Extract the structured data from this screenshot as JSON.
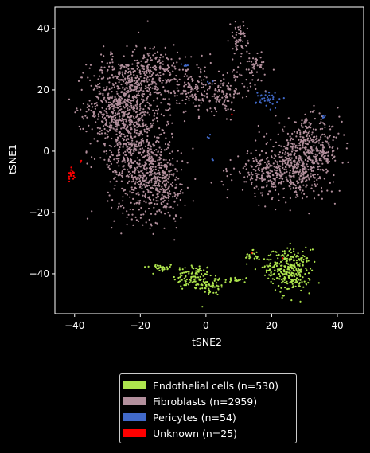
{
  "chart_data": {
    "type": "scatter",
    "title": "",
    "xlabel": "tSNE2",
    "ylabel": "tSNE1",
    "xlim": [
      -46,
      48
    ],
    "ylim": [
      -53,
      47
    ],
    "xticks": [
      -40,
      -20,
      0,
      20,
      40
    ],
    "yticks": [
      -40,
      -20,
      0,
      20,
      40
    ],
    "xtick_labels": [
      "−40",
      "−20",
      "0",
      "20",
      "40"
    ],
    "ytick_labels": [
      "−40",
      "−20",
      "0",
      "20",
      "40"
    ],
    "grid": false,
    "legend_position": "below",
    "series": [
      {
        "name": "Endothelial cells (n=530)",
        "color": "#aee54d",
        "n": 530,
        "clusters": [
          {
            "cx": -14,
            "cy": -38,
            "sx": 2.5,
            "sy": 0.7,
            "n": 30
          },
          {
            "cx": -4,
            "cy": -41,
            "sx": 3.0,
            "sy": 2.2,
            "n": 100
          },
          {
            "cx": 2,
            "cy": -44,
            "sx": 2.0,
            "sy": 1.6,
            "n": 50
          },
          {
            "cx": 9,
            "cy": -42,
            "sx": 2.0,
            "sy": 0.5,
            "n": 20
          },
          {
            "cx": 14,
            "cy": -34,
            "sx": 1.0,
            "sy": 1.2,
            "n": 20
          },
          {
            "cx": 19,
            "cy": -37,
            "sx": 1.6,
            "sy": 1.8,
            "n": 40
          },
          {
            "cx": 26,
            "cy": -39,
            "sx": 3.0,
            "sy": 3.5,
            "n": 270
          }
        ]
      },
      {
        "name": "Fibroblasts (n=2959)",
        "color": "#b28f9c",
        "n": 2959,
        "clusters": [
          {
            "cx": -26,
            "cy": 15,
            "sx": 5.0,
            "sy": 8.0,
            "n": 700
          },
          {
            "cx": -20,
            "cy": -3,
            "sx": 5.0,
            "sy": 9.0,
            "n": 600
          },
          {
            "cx": -16,
            "cy": 25,
            "sx": 4.0,
            "sy": 5.0,
            "n": 250
          },
          {
            "cx": -13,
            "cy": -12,
            "sx": 3.5,
            "sy": 5.0,
            "n": 200
          },
          {
            "cx": -4,
            "cy": 20,
            "sx": 4.0,
            "sy": 4.0,
            "n": 150
          },
          {
            "cx": 6,
            "cy": 19,
            "sx": 4.0,
            "sy": 3.5,
            "n": 120
          },
          {
            "cx": 10,
            "cy": 37,
            "sx": 1.3,
            "sy": 2.5,
            "n": 60
          },
          {
            "cx": 15,
            "cy": 28,
            "sx": 2.5,
            "sy": 2.5,
            "n": 50
          },
          {
            "cx": 31,
            "cy": 0,
            "sx": 5.0,
            "sy": 5.0,
            "n": 450
          },
          {
            "cx": 20,
            "cy": -7,
            "sx": 5.5,
            "sy": 3.5,
            "n": 300
          },
          {
            "cx": 28,
            "cy": -9,
            "sx": 5.0,
            "sy": 3.5,
            "n": 79
          }
        ]
      },
      {
        "name": "Pericytes (n=54)",
        "color": "#4169c9",
        "n": 54,
        "clusters": [
          {
            "cx": 19,
            "cy": 17,
            "sx": 1.8,
            "sy": 1.5,
            "n": 35
          },
          {
            "cx": -6,
            "cy": 28,
            "sx": 0.7,
            "sy": 0.4,
            "n": 6
          },
          {
            "cx": 36,
            "cy": 11,
            "sx": 0.6,
            "sy": 0.4,
            "n": 4
          },
          {
            "cx": 1,
            "cy": 5,
            "sx": 0.5,
            "sy": 0.5,
            "n": 3
          },
          {
            "cx": 2,
            "cy": -3,
            "sx": 0.4,
            "sy": 0.4,
            "n": 3
          },
          {
            "cx": 1,
            "cy": 22,
            "sx": 0.5,
            "sy": 0.5,
            "n": 3
          }
        ]
      },
      {
        "name": "Unknown (n=25)",
        "color": "#ff0000",
        "n": 25,
        "clusters": [
          {
            "cx": -41,
            "cy": -7.5,
            "sx": 0.5,
            "sy": 0.9,
            "n": 20
          },
          {
            "cx": -38,
            "cy": -3.5,
            "sx": 0.2,
            "sy": 0.2,
            "n": 2
          },
          {
            "cx": 8,
            "cy": 12,
            "sx": 0.2,
            "sy": 0.2,
            "n": 1
          },
          {
            "cx": 23,
            "cy": -35,
            "sx": 0.2,
            "sy": 0.2,
            "n": 1
          },
          {
            "cx": 14,
            "cy": -33,
            "sx": 0.2,
            "sy": 0.2,
            "n": 1
          }
        ]
      }
    ]
  }
}
